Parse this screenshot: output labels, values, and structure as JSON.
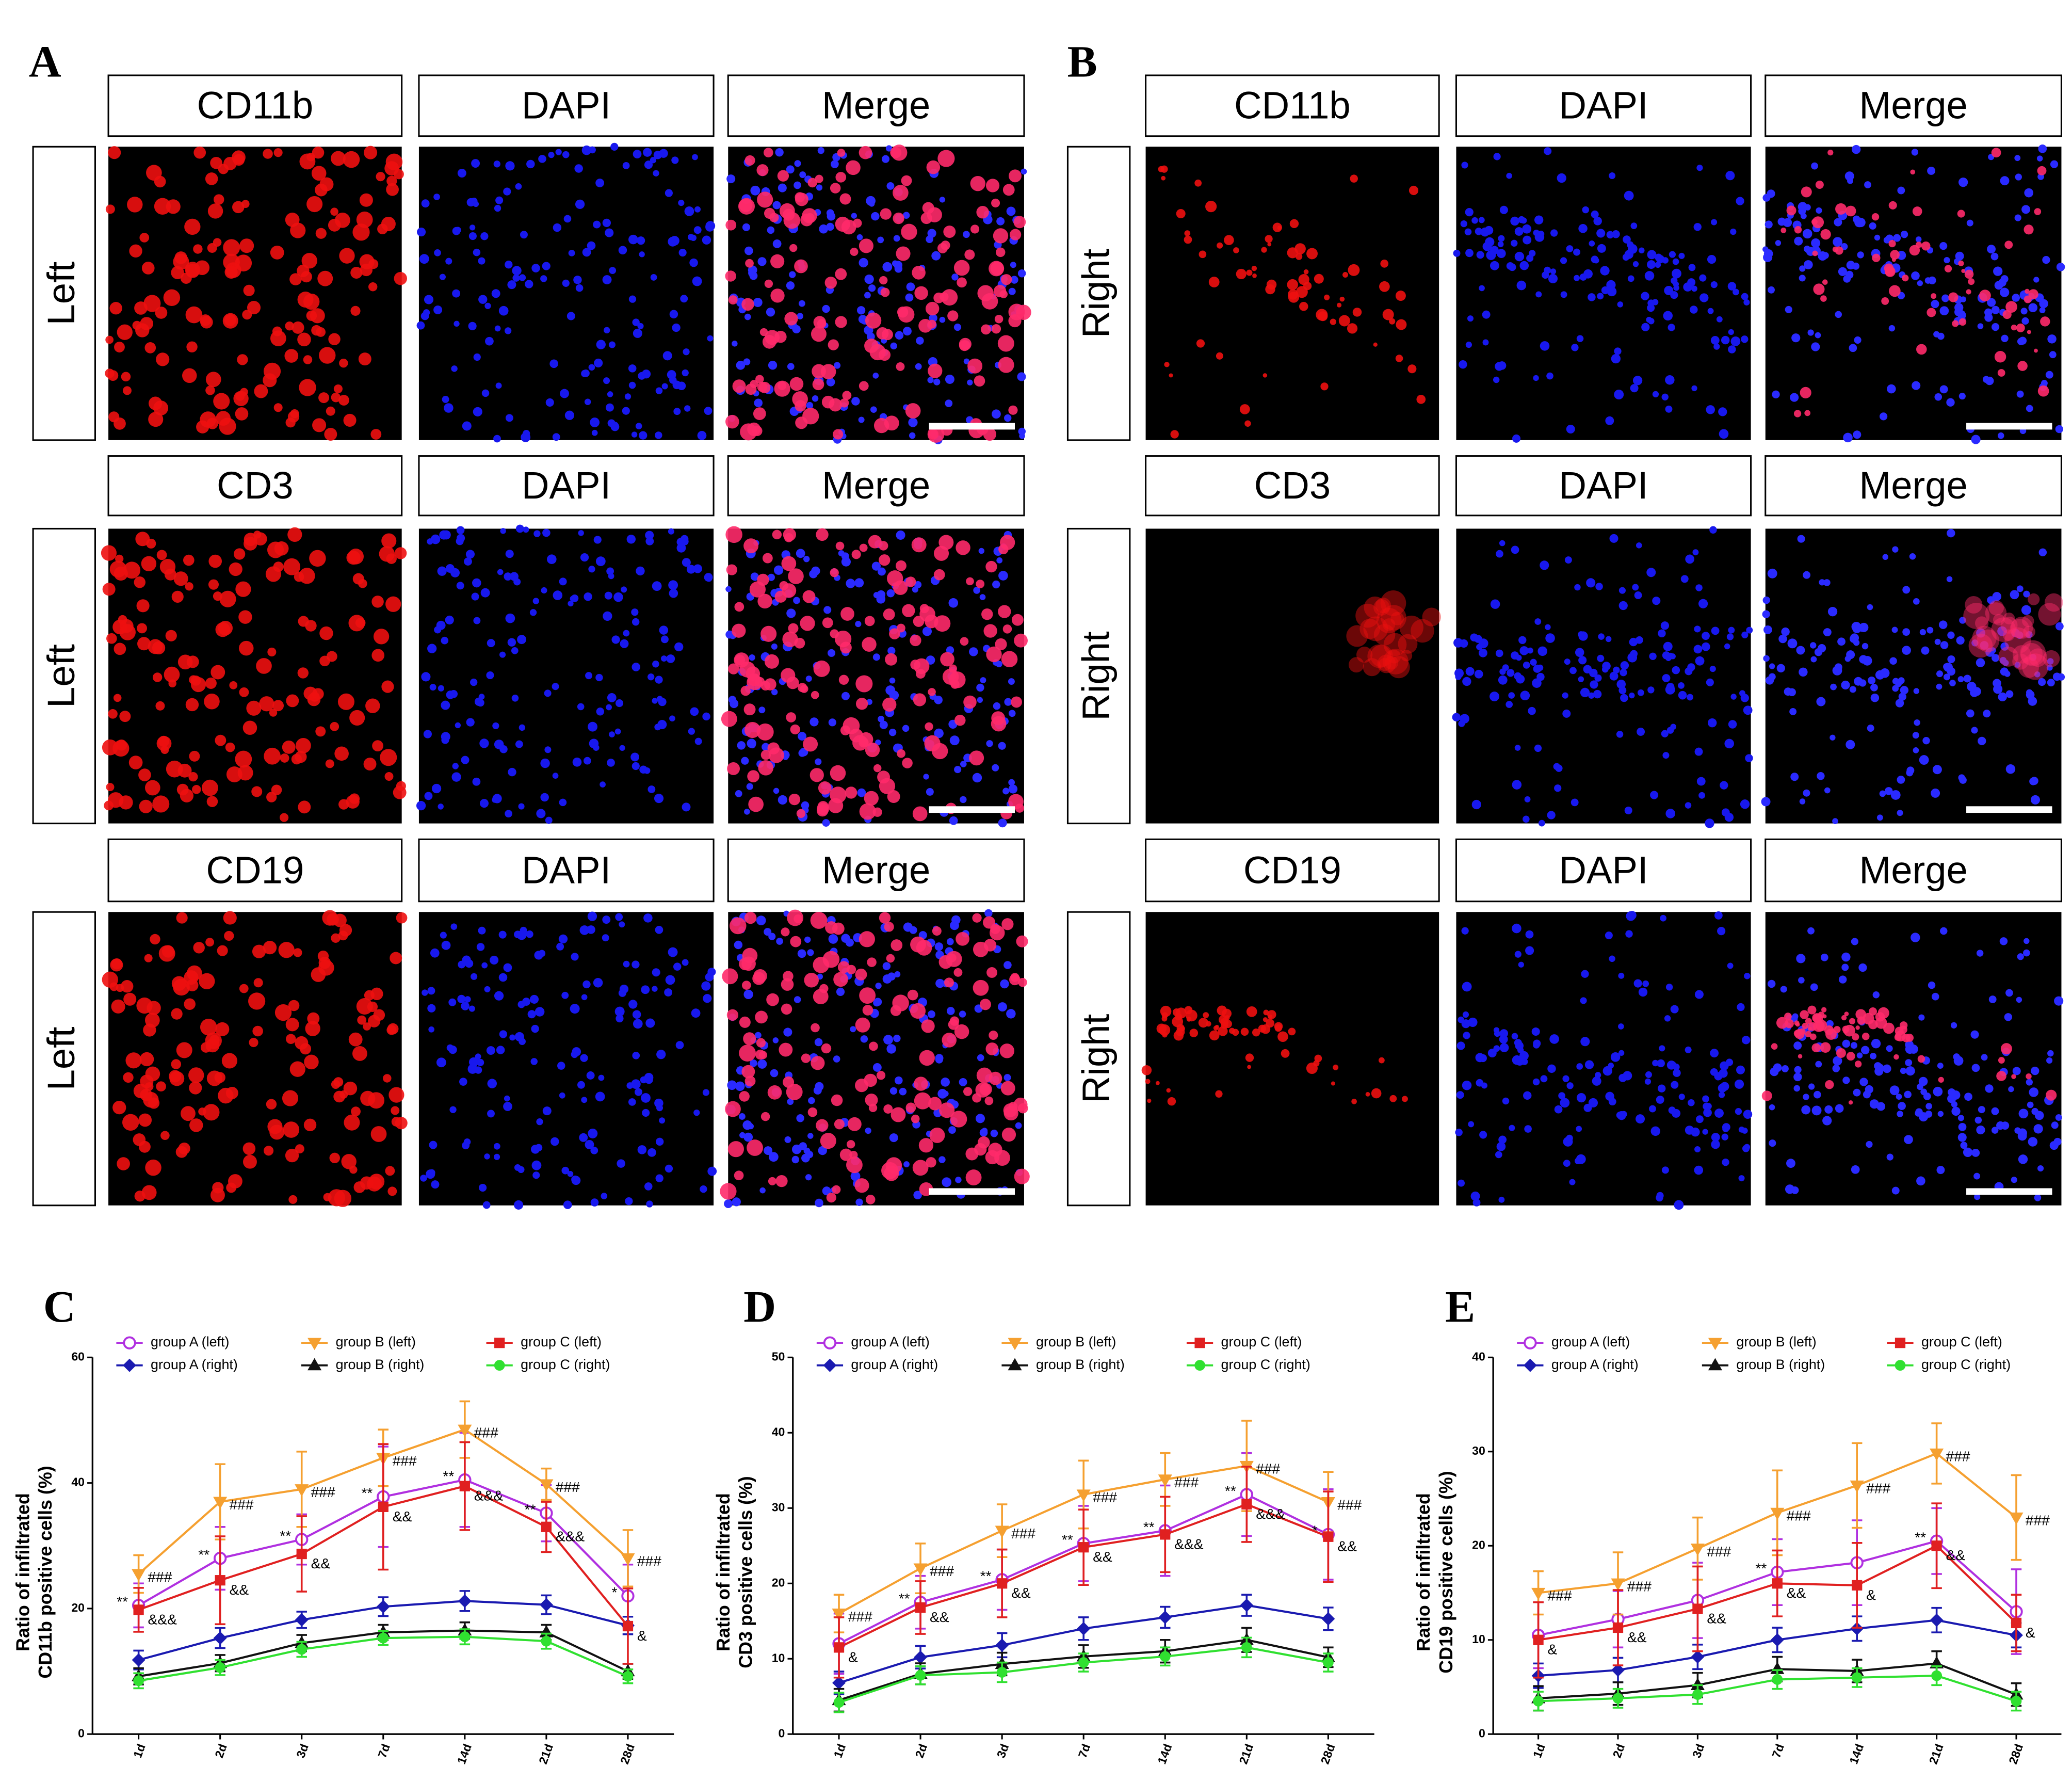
{
  "figure": {
    "panels": [
      {
        "label": "A",
        "rows": [
          {
            "side": "Left",
            "headers": [
              "CD11b",
              "DAPI",
              "Merge"
            ]
          },
          {
            "side": "Left",
            "headers": [
              "CD3",
              "DAPI",
              "Merge"
            ]
          },
          {
            "side": "Left",
            "headers": [
              "CD19",
              "DAPI",
              "Merge"
            ]
          }
        ]
      },
      {
        "label": "B",
        "rows": [
          {
            "side": "Right",
            "headers": [
              "CD11b",
              "DAPI",
              "Merge"
            ]
          },
          {
            "side": "Right",
            "headers": [
              "CD3",
              "DAPI",
              "Merge"
            ]
          },
          {
            "side": "Right",
            "headers": [
              "CD19",
              "DAPI",
              "Merge"
            ]
          }
        ]
      }
    ]
  },
  "chart_data": [
    {
      "type": "line",
      "label": "C",
      "ylabel": [
        "Ratio of infiltrated",
        "CD11b positive cells (%)"
      ],
      "categories": [
        "1d",
        "2d",
        "3d",
        "7d",
        "14d",
        "21d",
        "28d"
      ],
      "ylim": [
        0,
        60
      ],
      "yticks": [
        0,
        20,
        40,
        60
      ],
      "series": [
        {
          "name": "group A (left)",
          "color": "#b030e0",
          "marker": "open-circle",
          "values": [
            20.5,
            28,
            31,
            37.8,
            40.5,
            35.2,
            22
          ],
          "errors": [
            3.5,
            5,
            4,
            8,
            7.5,
            4.5,
            5
          ],
          "annotations": [
            "**",
            "**",
            "**",
            "**",
            "**",
            "**",
            "*"
          ]
        },
        {
          "name": "group A (right)",
          "color": "#1a1ab0",
          "marker": "diamond",
          "values": [
            11.8,
            15.3,
            18.2,
            20.3,
            21.2,
            20.6,
            17.3
          ],
          "errors": [
            1.5,
            1.6,
            1.3,
            1.5,
            1.6,
            1.5,
            1.4
          ]
        },
        {
          "name": "group B (left)",
          "color": "#f5a030",
          "marker": "triangle-down",
          "values": [
            25.5,
            37,
            39,
            44,
            48.5,
            39.8,
            28
          ],
          "errors": [
            3,
            6,
            6,
            4.5,
            4.5,
            2.5,
            4.5
          ],
          "annotations": [
            "###",
            "###",
            "###",
            "###",
            "###",
            "###",
            "###"
          ]
        },
        {
          "name": "group B (right)",
          "color": "#111111",
          "marker": "triangle-up",
          "values": [
            9.2,
            11.3,
            14.5,
            16.2,
            16.5,
            16.2,
            10
          ],
          "errors": [
            1.3,
            1.3,
            1.3,
            1.2,
            1.3,
            1.2,
            1.2
          ]
        },
        {
          "name": "group C (left)",
          "color": "#e02020",
          "marker": "square",
          "values": [
            19.8,
            24.5,
            28.7,
            36.2,
            39.5,
            33,
            17.2
          ],
          "errors": [
            3.5,
            7,
            6,
            10,
            7,
            4,
            6
          ],
          "annotations": [
            "&&&",
            "&&",
            "&&",
            "&&",
            "&&&",
            "&&&",
            "&"
          ]
        },
        {
          "name": "group C (right)",
          "color": "#30e030",
          "marker": "circle",
          "values": [
            8.5,
            10.6,
            13.5,
            15.3,
            15.5,
            14.8,
            9.2
          ],
          "errors": [
            1.2,
            1.2,
            1.2,
            1.1,
            1.2,
            1.2,
            1.1
          ]
        }
      ]
    },
    {
      "type": "line",
      "label": "D",
      "ylabel": [
        "Ratio of infiltrated",
        "CD3 positive cells (%)"
      ],
      "categories": [
        "1d",
        "2d",
        "3d",
        "7d",
        "14d",
        "21d",
        "28d"
      ],
      "ylim": [
        0,
        50
      ],
      "yticks": [
        0,
        10,
        20,
        30,
        40,
        50
      ],
      "series": [
        {
          "name": "group A (left)",
          "color": "#b030e0",
          "marker": "open-circle",
          "values": [
            12,
            17.5,
            20.5,
            25.3,
            27,
            31.8,
            26.5
          ],
          "errors": [
            4,
            3.5,
            4,
            5,
            6,
            5.5,
            6
          ],
          "annotations": [
            null,
            "**",
            "**",
            "**",
            "**",
            "**",
            "*"
          ]
        },
        {
          "name": "group A (right)",
          "color": "#1a1ab0",
          "marker": "diamond",
          "values": [
            6.8,
            10.2,
            11.8,
            14,
            15.5,
            17.1,
            15.3
          ],
          "errors": [
            1.5,
            1.5,
            1.6,
            1.5,
            1.4,
            1.4,
            1.5
          ]
        },
        {
          "name": "group B (left)",
          "color": "#f5a030",
          "marker": "triangle-down",
          "values": [
            16,
            22,
            27,
            31.8,
            33.8,
            35.6,
            30.8
          ],
          "errors": [
            2.5,
            3.3,
            3.5,
            4.5,
            3.5,
            6,
            4
          ],
          "annotations": [
            "###",
            "###",
            "###",
            "###",
            "###",
            "###",
            "###"
          ]
        },
        {
          "name": "group B (right)",
          "color": "#111111",
          "marker": "triangle-up",
          "values": [
            4.5,
            8,
            9.3,
            10.3,
            11,
            12.5,
            10.2
          ],
          "errors": [
            1.5,
            1.4,
            1.5,
            1.5,
            1.5,
            1.6,
            1.3
          ]
        },
        {
          "name": "group C (left)",
          "color": "#e02020",
          "marker": "square",
          "values": [
            11.5,
            16.8,
            20,
            24.8,
            26.5,
            30.5,
            26.2
          ],
          "errors": [
            4,
            3.5,
            4.5,
            5,
            5,
            5,
            6
          ],
          "annotations": [
            "&",
            "&&",
            "&&",
            "&&",
            "&&&",
            "&&&",
            "&&"
          ]
        },
        {
          "name": "group C (right)",
          "color": "#30e030",
          "marker": "circle",
          "values": [
            4.2,
            7.8,
            8.2,
            9.5,
            10.3,
            11.5,
            9.5
          ],
          "errors": [
            1.3,
            1.2,
            1.3,
            1.2,
            1.2,
            1.3,
            1.2
          ]
        }
      ]
    },
    {
      "type": "line",
      "label": "E",
      "ylabel": [
        "Ratio of infiltrated",
        "CD19 positive cells (%)"
      ],
      "categories": [
        "1d",
        "2d",
        "3d",
        "7d",
        "14d",
        "21d",
        "28d"
      ],
      "ylim": [
        0,
        40
      ],
      "yticks": [
        0,
        10,
        20,
        30,
        40
      ],
      "series": [
        {
          "name": "group A (left)",
          "color": "#b030e0",
          "marker": "open-circle",
          "values": [
            10.5,
            12.2,
            14.2,
            17.2,
            18.2,
            20.5,
            13
          ],
          "errors": [
            3.5,
            3,
            4,
            3.5,
            4.5,
            3.5,
            4.5
          ],
          "annotations": [
            null,
            null,
            null,
            "**",
            null,
            "**",
            null
          ]
        },
        {
          "name": "group A (right)",
          "color": "#1a1ab0",
          "marker": "diamond",
          "values": [
            6.2,
            6.8,
            8.2,
            10,
            11.2,
            12.1,
            10.5
          ],
          "errors": [
            1.3,
            1.3,
            1.3,
            1.3,
            1.3,
            1.3,
            1.3
          ]
        },
        {
          "name": "group B (left)",
          "color": "#f5a030",
          "marker": "triangle-down",
          "values": [
            15,
            16,
            19.7,
            23.5,
            26.4,
            29.8,
            23
          ],
          "errors": [
            2.3,
            3.3,
            3.3,
            4.5,
            4.5,
            3.2,
            4.5
          ],
          "annotations": [
            "###",
            "###",
            "###",
            "###",
            "###",
            "###",
            "###"
          ]
        },
        {
          "name": "group B (right)",
          "color": "#111111",
          "marker": "triangle-up",
          "values": [
            3.8,
            4.3,
            5.2,
            6.9,
            6.7,
            7.5,
            4.2
          ],
          "errors": [
            1.3,
            1.2,
            1.3,
            1.3,
            1.2,
            1.3,
            1.2
          ]
        },
        {
          "name": "group C (left)",
          "color": "#e02020",
          "marker": "square",
          "values": [
            10,
            11.3,
            13.3,
            16,
            15.8,
            20,
            11.8
          ],
          "errors": [
            4,
            4,
            4.5,
            3.5,
            4.5,
            4.5,
            3
          ],
          "annotations": [
            "&",
            "&&",
            "&&",
            "&&",
            "&",
            "&&",
            "&"
          ]
        },
        {
          "name": "group C (right)",
          "color": "#30e030",
          "marker": "circle",
          "values": [
            3.5,
            3.8,
            4.2,
            5.8,
            6,
            6.2,
            3.5
          ],
          "errors": [
            1,
            1,
            1,
            1,
            1,
            1,
            1
          ]
        }
      ]
    }
  ]
}
